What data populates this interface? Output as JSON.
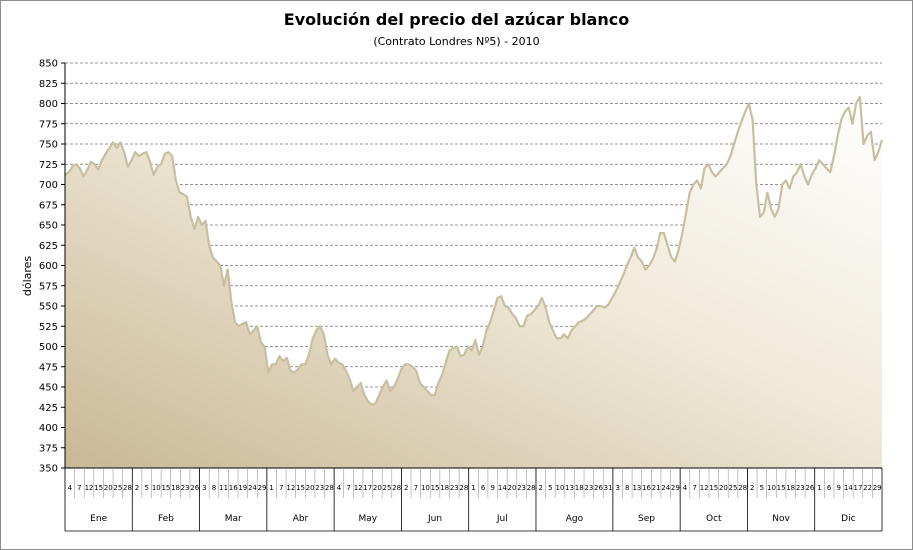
{
  "chart_data": {
    "type": "area",
    "title": "Evolución del precio del azúcar blanco",
    "subtitle": "(Contrato Londres Nº5)  - 2010",
    "ylabel": "dólares",
    "xlabel": "",
    "ylim": [
      350,
      850
    ],
    "yticks": [
      350,
      375,
      400,
      425,
      450,
      475,
      500,
      525,
      550,
      575,
      600,
      625,
      650,
      675,
      700,
      725,
      750,
      775,
      800,
      825,
      850
    ],
    "grid": true,
    "legend": "none",
    "colors": {
      "line": "#c7bfa0",
      "fill_light": "#ffffff",
      "fill_dark": "#c9b896",
      "grid": "#707070"
    },
    "months": [
      {
        "label": "Ene",
        "days": [
          "4",
          "7",
          "12",
          "15",
          "20",
          "25",
          "28"
        ]
      },
      {
        "label": "Feb",
        "days": [
          "2",
          "5",
          "10",
          "15",
          "18",
          "23",
          "26"
        ]
      },
      {
        "label": "Mar",
        "days": [
          "3",
          "8",
          "11",
          "16",
          "19",
          "24",
          "29"
        ]
      },
      {
        "label": "Abr",
        "days": [
          "1",
          "7",
          "12",
          "15",
          "20",
          "23",
          "28"
        ]
      },
      {
        "label": "May",
        "days": [
          "4",
          "7",
          "12",
          "17",
          "20",
          "25",
          "28"
        ]
      },
      {
        "label": "Jun",
        "days": [
          "2",
          "7",
          "10",
          "15",
          "18",
          "23",
          "28"
        ]
      },
      {
        "label": "Jul",
        "days": [
          "1",
          "6",
          "9",
          "14",
          "20",
          "23",
          "28"
        ]
      },
      {
        "label": "Ago",
        "days": [
          "2",
          "5",
          "10",
          "13",
          "18",
          "23",
          "26",
          "31"
        ]
      },
      {
        "label": "Sep",
        "days": [
          "3",
          "8",
          "13",
          "16",
          "21",
          "24",
          "29"
        ]
      },
      {
        "label": "Oct",
        "days": [
          "4",
          "7",
          "12",
          "15",
          "20",
          "25",
          "28"
        ]
      },
      {
        "label": "Nov",
        "days": [
          "2",
          "5",
          "10",
          "15",
          "18",
          "23",
          "26"
        ]
      },
      {
        "label": "Dic",
        "days": [
          "1",
          "6",
          "9",
          "14",
          "17",
          "22",
          "29"
        ]
      }
    ],
    "series": [
      {
        "values": [
          712,
          715,
          722,
          725,
          720,
          710,
          718,
          728,
          725,
          718,
          730,
          738,
          745,
          752,
          745,
          752,
          740,
          722,
          730,
          740,
          735,
          738,
          740,
          728,
          712,
          722,
          725,
          738,
          740,
          735,
          705,
          690,
          688,
          685,
          660,
          645,
          660,
          650,
          655,
          625,
          610,
          605,
          600,
          575,
          595,
          555,
          530,
          525,
          528,
          530,
          515,
          520,
          525,
          505,
          500,
          468,
          478,
          478,
          488,
          482,
          486,
          470,
          468,
          472,
          478,
          478,
          490,
          510,
          520,
          525,
          515,
          490,
          478,
          485,
          480,
          478,
          470,
          460,
          445,
          450,
          455,
          440,
          432,
          428,
          430,
          440,
          450,
          458,
          445,
          450,
          460,
          472,
          478,
          478,
          475,
          470,
          455,
          450,
          445,
          440,
          440,
          455,
          465,
          480,
          495,
          498,
          500,
          488,
          490,
          500,
          495,
          508,
          490,
          500,
          520,
          530,
          545,
          560,
          562,
          550,
          548,
          540,
          535,
          525,
          525,
          538,
          540,
          545,
          550,
          560,
          548,
          530,
          520,
          510,
          510,
          515,
          510,
          520,
          525,
          530,
          532,
          535,
          540,
          545,
          550,
          550,
          548,
          552,
          560,
          568,
          578,
          588,
          600,
          610,
          622,
          610,
          605,
          595,
          600,
          608,
          620,
          640,
          640,
          625,
          610,
          605,
          620,
          640,
          665,
          690,
          700,
          705,
          695,
          720,
          725,
          715,
          710,
          715,
          720,
          725,
          735,
          750,
          765,
          778,
          790,
          800,
          780,
          700,
          660,
          665,
          690,
          670,
          660,
          670,
          700,
          705,
          695,
          710,
          715,
          725,
          710,
          700,
          712,
          720,
          730,
          725,
          720,
          715,
          735,
          760,
          780,
          790,
          795,
          775,
          800,
          808,
          750,
          760,
          765,
          730,
          740,
          755
        ]
      }
    ]
  }
}
